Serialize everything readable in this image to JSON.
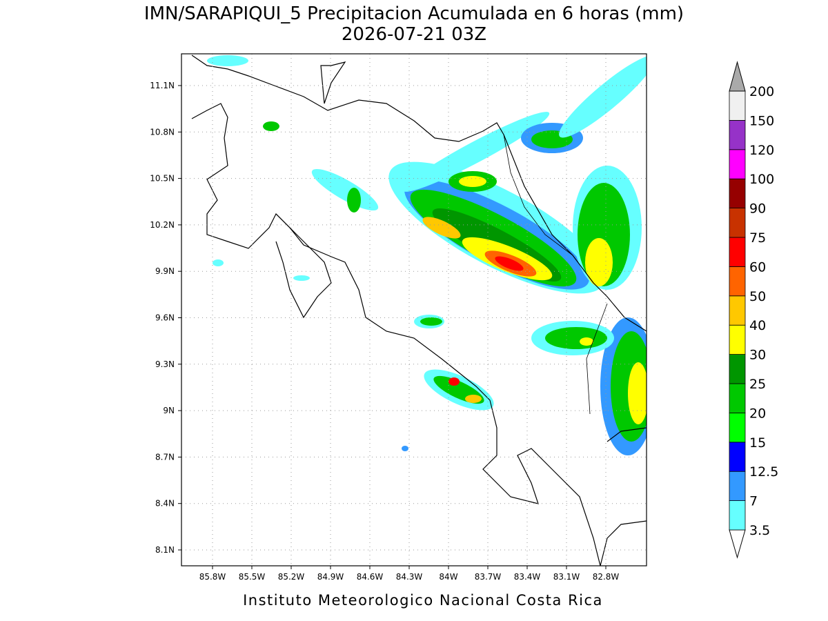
{
  "title": {
    "line1": "IMN/SARAPIQUI_5 Precipitacion Acumulada en 6 horas (mm)",
    "line2": "2026-07-21 03Z"
  },
  "map": {
    "lon_ticks": [
      "85.8W",
      "85.5W",
      "85.2W",
      "84.9W",
      "84.6W",
      "84.3W",
      "84W",
      "83.7W",
      "83.4W",
      "83.1W",
      "82.8W"
    ],
    "lat_ticks": [
      "11.1N",
      "10.8N",
      "10.5N",
      "10.2N",
      "9.9N",
      "9.6N",
      "9.3N",
      "9N",
      "8.7N",
      "8.4N",
      "8.1N"
    ]
  },
  "colorbar": {
    "levels": [
      3.5,
      7,
      12.5,
      15,
      20,
      25,
      30,
      40,
      50,
      60,
      75,
      90,
      100,
      120,
      150,
      200
    ],
    "colors": [
      "#ffffff",
      "#66ffff",
      "#3399ff",
      "#0000ff",
      "#00ff00",
      "#00c800",
      "#009600",
      "#ffff00",
      "#ffc800",
      "#ff6400",
      "#ff0000",
      "#c83200",
      "#960000",
      "#ff00ff",
      "#9632c8",
      "#f0f0f0",
      "#aaaaaa"
    ]
  },
  "footer": "Instituto Meteorologico Nacional Costa Rica"
}
